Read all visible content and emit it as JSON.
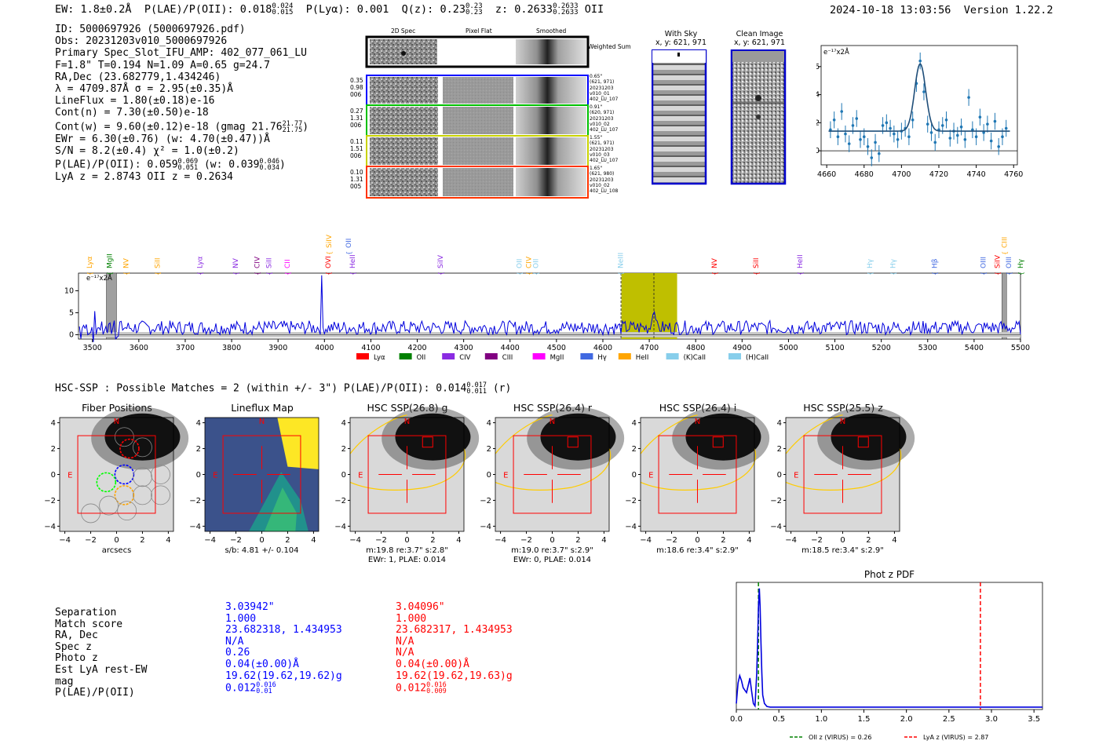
{
  "header": {
    "ew": "EW: 1.8±0.2Å",
    "plae_label": "P(LAE)/P(OII): 0.018",
    "plae_sup": "0.024",
    "plae_sub": "0.015",
    "plya": "P(Lyα): 0.001",
    "qz_label": "Q(z): 0.23",
    "qz_sup": "0.23",
    "qz_sub": "0.23",
    "z_label": "z: 0.2633",
    "z_sup": "0.2633",
    "z_sub": "0.2633",
    "z_line": "OII",
    "datetime": "2024-10-18 13:03:56",
    "version": "Version 1.22.2"
  },
  "info": {
    "id": "ID: 5000697926 (5000697926.pdf)",
    "obs": "Obs: 20231203v010_5000697926",
    "primary": "Primary Spec_Slot_IFU_AMP: 402_077_061_LU",
    "params": "F=1.8\"  T=0.194  N=1.09  A=0.65  g=24.7",
    "radec": "RA,Dec (23.682779,1.434246)",
    "lambda": "λ = 4709.87Å  σ = 2.95(±0.35)Å",
    "lineflux": "LineFlux = 1.80(±0.18)e-16",
    "contn": "Cont(n) = 7.30(±0.50)e-18",
    "contw_label": "Cont(w) = 9.60(±0.12)e-18 (gmag 21.76",
    "contw_sup": "21.77",
    "contw_sub": "21.75",
    "ewr": "EWr = 6.30(±0.76)  (w: 4.70(±0.47))Å",
    "sn": "S/N = 8.2(±0.4)  χ² = 1.0(±0.2)",
    "plae2_label": "P(LAE)/P(OII): 0.059",
    "plae2_sup": "0.069",
    "plae2_sub": "0.051",
    "plae2_w": "(w: 0.039",
    "plae2_w_sup": "0.046",
    "plae2_w_sub": "0.034",
    "lyaz": "LyA z = 2.8743   OII z = 0.2634"
  },
  "cutouts": {
    "col1": "2D Spec",
    "col2": "Pixel Flat",
    "col3": "Smoothed",
    "weighted": "Weighted Sum",
    "rows": [
      {
        "left": [
          "0.35",
          "0.98",
          "006"
        ],
        "right": [
          "0.65\"",
          "(621, 971)",
          "20231203",
          "v010_01",
          "402_LU_107"
        ],
        "color": "#0000ff"
      },
      {
        "left": [
          "0.27",
          "1.31",
          "006"
        ],
        "right": [
          "0.91\"",
          "(620, 971)",
          "20231203",
          "v010_02",
          "402_LU_107"
        ],
        "color": "#00c000"
      },
      {
        "left": [
          "0.11",
          "1.51",
          "006"
        ],
        "right": [
          "1.55\"",
          "(621, 971)",
          "20231203",
          "v010_03",
          "402_LU_107"
        ],
        "color": "#c8d200"
      },
      {
        "left": [
          "0.10",
          "1.31",
          "005"
        ],
        "right": [
          "1.65\"",
          "(621, 980)",
          "20231203",
          "v010_02",
          "402_LU_108"
        ],
        "color": "#ff3300"
      }
    ],
    "with_sky": "With Sky",
    "with_sky_xy": "x, y: 621, 971",
    "clean": "Clean Image",
    "clean_xy": "x, y: 621, 971"
  },
  "zoom_chart": {
    "unit_label": "e⁻¹⁷x2Å"
  },
  "chart_data": [
    {
      "type": "scatter",
      "title": "",
      "ylabel": "e-17 x2Å",
      "xlim": [
        4657,
        4762
      ],
      "ylim": [
        -1,
        7.5
      ],
      "xticks": [
        4660,
        4680,
        4700,
        4720,
        4740,
        4760
      ],
      "yticks": [
        0,
        2,
        4,
        6
      ],
      "points_x": [
        4662,
        4664,
        4666,
        4668,
        4670,
        4672,
        4674,
        4676,
        4678,
        4680,
        4682,
        4684,
        4686,
        4688,
        4690,
        4692,
        4694,
        4696,
        4698,
        4700,
        4702,
        4704,
        4706,
        4708,
        4710,
        4712,
        4714,
        4716,
        4718,
        4720,
        4722,
        4724,
        4726,
        4728,
        4730,
        4732,
        4734,
        4736,
        4738,
        4740,
        4742,
        4744,
        4746,
        4748,
        4750,
        4752,
        4754,
        4756
      ],
      "points_y": [
        1.5,
        2.2,
        1.0,
        2.8,
        1.2,
        0.5,
        1.8,
        2.3,
        0.8,
        1.0,
        0.3,
        -0.5,
        0.6,
        -0.2,
        1.8,
        2.0,
        1.6,
        1.2,
        0.8,
        1.4,
        1.6,
        1.0,
        2.2,
        4.8,
        6.4,
        4.2,
        1.9,
        1.3,
        0.6,
        1.5,
        1.8,
        2.2,
        0.9,
        1.4,
        1.1,
        1.7,
        0.8,
        3.8,
        1.5,
        1.0,
        2.4,
        1.3,
        1.9,
        0.7,
        2.1,
        0.3,
        1.0,
        1.6
      ],
      "fit_continuum": 1.4,
      "fit_peak": 6.2,
      "fit_center": 4710,
      "fit_sigma": 2.95
    },
    {
      "type": "line",
      "title": "",
      "ylabel": "e-17 x2Å",
      "xlim": [
        3470,
        5500
      ],
      "ylim": [
        -1,
        14
      ],
      "xticks": [
        3500,
        3600,
        3700,
        3800,
        3900,
        4000,
        4100,
        4200,
        4300,
        4400,
        4500,
        4600,
        4700,
        4800,
        4900,
        5000,
        5100,
        5200,
        5300,
        5400,
        5500
      ],
      "yticks": [
        0,
        5,
        10
      ],
      "highlight_band": [
        4640,
        4760
      ],
      "dashed_lines": [
        4639,
        4710
      ],
      "masked_regions": [
        [
          3530,
          3552
        ],
        [
          5460,
          5470
        ]
      ],
      "emission_lines": [
        {
          "name": "Lyα",
          "wave": 3494,
          "color": "#ffa500",
          "row": 3
        },
        {
          "name": "MgII",
          "wave": 3537,
          "color": "#008000",
          "row": 2
        },
        {
          "name": "NV",
          "wave": 3572,
          "color": "#ffa500",
          "row": 2
        },
        {
          "name": "SiII",
          "wave": 3640,
          "color": "#ffa500",
          "row": 3
        },
        {
          "name": "Lyα",
          "wave": 3731,
          "color": "#8a2be2",
          "row": 3
        },
        {
          "name": "NV",
          "wave": 3808,
          "color": "#8a2be2",
          "row": 2
        },
        {
          "name": "CIV",
          "wave": 3855,
          "color": "#800080",
          "row": 2
        },
        {
          "name": "SiII",
          "wave": 3880,
          "color": "#8a2be2",
          "row": 2
        },
        {
          "name": "CII",
          "wave": 3920,
          "color": "#ff00ff",
          "row": 3
        },
        {
          "name": "OVI",
          "wave": 4008,
          "color": "#ff0000",
          "row": 3
        },
        {
          "name": "SiIV",
          "wave": 4010,
          "color": "#ffa500",
          "row": 1
        },
        {
          "name": "OII",
          "wave": 4052,
          "color": "#4169e1",
          "row": 1
        },
        {
          "name": "HeII",
          "wave": 4060,
          "color": "#8a2be2",
          "row": 3
        },
        {
          "name": "SiIV",
          "wave": 4250,
          "color": "#8a2be2",
          "row": 3
        },
        {
          "name": "OII",
          "wave": 4420,
          "color": "#87ceeb",
          "row": 3
        },
        {
          "name": "CIV",
          "wave": 4440,
          "color": "#ffa500",
          "row": 3
        },
        {
          "name": "OII",
          "wave": 4455,
          "color": "#87ceeb",
          "row": 2
        },
        {
          "name": "NeIII",
          "wave": 4638,
          "color": "#87ceeb",
          "row": 2
        },
        {
          "name": "NV",
          "wave": 4840,
          "color": "#ff0000",
          "row": 3
        },
        {
          "name": "SiII",
          "wave": 4930,
          "color": "#ff0000",
          "row": 3
        },
        {
          "name": "HeII",
          "wave": 5025,
          "color": "#8a2be2",
          "row": 3
        },
        {
          "name": "Hγ",
          "wave": 5175,
          "color": "#87ceeb",
          "row": 3
        },
        {
          "name": "Hγ",
          "wave": 5225,
          "color": "#87ceeb",
          "row": 3
        },
        {
          "name": "Hβ",
          "wave": 5315,
          "color": "#4169e1",
          "row": 3
        },
        {
          "name": "OIII",
          "wave": 5420,
          "color": "#4169e1",
          "row": 3
        },
        {
          "name": "SiIV",
          "wave": 5450,
          "color": "#ff0000",
          "row": 3
        },
        {
          "name": "OIII",
          "wave": 5475,
          "color": "#4169e1",
          "row": 3
        },
        {
          "name": "CIII",
          "wave": 5465,
          "color": "#ffa500",
          "row": 1
        },
        {
          "name": "Hγ",
          "wave": 5500,
          "color": "#008000",
          "row": 3
        }
      ],
      "legend": [
        {
          "label": "Lyα",
          "color": "#ff0000"
        },
        {
          "label": "OII",
          "color": "#008000"
        },
        {
          "label": "CIV",
          "color": "#8a2be2"
        },
        {
          "label": "CIII",
          "color": "#800080"
        },
        {
          "label": "MgII",
          "color": "#ff00ff"
        },
        {
          "label": "Hγ",
          "color": "#4169e1"
        },
        {
          "label": "HeII",
          "color": "#ffa500"
        },
        {
          "label": "(K)CaII",
          "color": "#87ceeb"
        },
        {
          "label": "(H)CaII",
          "color": "#87ceeb"
        }
      ]
    },
    {
      "type": "line",
      "title": "Phot z PDF",
      "xlim": [
        0,
        3.6
      ],
      "ylim": [
        0,
        1.05
      ],
      "xticks": [
        0.0,
        0.5,
        1.0,
        1.5,
        2.0,
        2.5,
        3.0,
        3.5
      ],
      "x": [
        0.0,
        0.02,
        0.04,
        0.06,
        0.08,
        0.1,
        0.12,
        0.14,
        0.16,
        0.18,
        0.2,
        0.22,
        0.24,
        0.25,
        0.26,
        0.27,
        0.28,
        0.29,
        0.3,
        0.31,
        0.33,
        0.36,
        0.4,
        0.5,
        1.0,
        2.0,
        3.0,
        3.6
      ],
      "y": [
        0.05,
        0.22,
        0.28,
        0.24,
        0.18,
        0.16,
        0.14,
        0.2,
        0.26,
        0.15,
        0.05,
        0.03,
        0.3,
        0.55,
        0.85,
        1.0,
        0.85,
        0.55,
        0.3,
        0.12,
        0.05,
        0.025,
        0.02,
        0.02,
        0.02,
        0.02,
        0.02,
        0.02
      ],
      "vlines": [
        {
          "x": 0.26,
          "color": "#008000",
          "label": "OII z (VIRUS) = 0.26"
        },
        {
          "x": 2.87,
          "color": "#ff0000",
          "label": "LyA z (VIRUS) = 2.87"
        }
      ]
    }
  ],
  "hsc": {
    "heading_label": "HSC-SSP : Possible Matches = 2 (within +/- 3\")  P(LAE)/P(OII): 0.014",
    "heading_sup": "0.017",
    "heading_sub": "0.011",
    "heading_band": "(r)",
    "panels": [
      {
        "title": "Fiber Positions",
        "caption1": "arcsecs",
        "caption2": ""
      },
      {
        "title": "Lineflux Map",
        "caption1": "s/b: 4.81 +/- 0.104",
        "caption2": ""
      },
      {
        "title": "HSC SSP(26.8) g",
        "caption1": "m:19.8   re:3.7\"  s:2.8\"",
        "caption2": "EWr: 1, PLAE: 0.014"
      },
      {
        "title": "HSC SSP(26.4) r",
        "caption1": "m:19.0   re:3.7\"  s:2.9\"",
        "caption2": "EWr: 0, PLAE: 0.014"
      },
      {
        "title": "HSC SSP(26.4) i",
        "caption1": "m:18.6  re:3.4\"  s:2.9\"",
        "caption2": ""
      },
      {
        "title": "HSC SSP(25.5) z",
        "caption1": "m:18.5  re:3.4\"  s:2.9\"",
        "caption2": ""
      }
    ],
    "axis_ticks": [
      "−4",
      "−2",
      "0",
      "2",
      "4"
    ],
    "north": "N",
    "east": "E"
  },
  "match_table": {
    "labels": [
      "Separation",
      "Match score",
      "RA, Dec",
      "Spec z",
      "Photo z",
      "Est LyA rest-EW",
      "mag",
      "P(LAE)/P(OII)"
    ],
    "col1": [
      "3.03942\"",
      "1.000",
      "23.682318, 1.434953",
      "N/A",
      "0.26",
      "0.04(±0.00)Å",
      "19.62(19.62,19.62)g",
      "0.012"
    ],
    "col1_plae_sup": "0.016",
    "col1_plae_sub": "0.01",
    "col2": [
      "3.04096\"",
      "1.000",
      "23.682317, 1.434953",
      "N/A",
      "N/A",
      "0.04(±0.00)Å",
      "19.62(19.62,19.63)g",
      "0.012"
    ],
    "col2_plae_sup": "0.016",
    "col2_plae_sub": "0.009"
  }
}
